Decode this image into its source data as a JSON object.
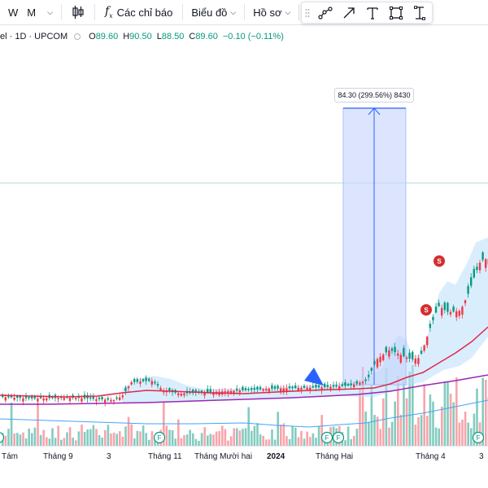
{
  "toolbar": {
    "intervals": [
      "W",
      "M"
    ],
    "indicators_label": "Các chỉ báo",
    "chart_type_label": "Biểu đồ",
    "profile_label": "Hồ sơ"
  },
  "legend": {
    "symbol": "el · 1D · UPCOM",
    "open_label": "O",
    "open": "89.60",
    "high_label": "H",
    "high": "90.50",
    "low_label": "L",
    "low": "88.50",
    "close_label": "C",
    "close": "89.60",
    "change": "−0.10 (−0.11%)"
  },
  "measure": {
    "text": "84.30 (299.56%) 8430"
  },
  "markers": {
    "split": "S",
    "dividend": "F"
  },
  "xaxis": {
    "labels": [
      {
        "text": "Tám",
        "bold": false
      },
      {
        "text": "Tháng 9",
        "bold": false
      },
      {
        "text": "3",
        "bold": false
      },
      {
        "text": "Tháng 11",
        "bold": false
      },
      {
        "text": "Tháng Mười hai",
        "bold": false
      },
      {
        "text": "2024",
        "bold": true
      },
      {
        "text": "Tháng Hai",
        "bold": false
      },
      {
        "text": "Tháng 4",
        "bold": false
      },
      {
        "text": "3",
        "bold": false
      }
    ]
  },
  "colors": {
    "up": "#089981",
    "down": "#f23645",
    "ma_red": "#e0294a",
    "ma_purple": "#9c27b0",
    "ma_blue": "#2962ff",
    "band": "#bbdefb",
    "measure_fill": "#c5d4fb",
    "accent": "#2962ff"
  }
}
